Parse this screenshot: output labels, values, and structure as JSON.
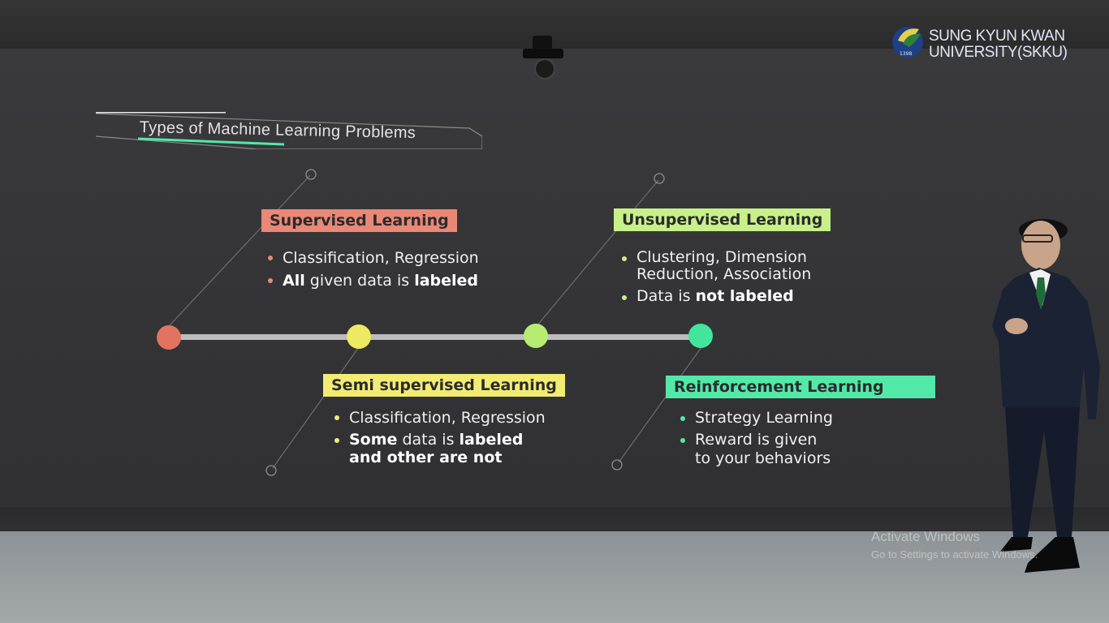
{
  "logo": {
    "line1": "SUNG KYUN KWAN",
    "line2": "UNIVERSITY(SKKU)",
    "year": "1398"
  },
  "slide": {
    "title": "Types of Machine Learning Problems",
    "categories": [
      {
        "name": "Supervised Learning",
        "color": "#e98876",
        "bullets": [
          {
            "parts": [
              "Classification, Regression"
            ]
          },
          {
            "bold1": "All",
            "text1": " given data is ",
            "bold2": "labeled"
          }
        ]
      },
      {
        "name": "Semi supervised Learning",
        "color": "#f2ec73",
        "bullets": [
          {
            "parts": [
              "Classification, Regression"
            ]
          },
          {
            "bold1": "Some",
            "text1": " data is ",
            "bold2": "labeled",
            "line2": "and other are not"
          }
        ]
      },
      {
        "name": "Unsupervised Learning",
        "color": "#c8f08a",
        "bullets": [
          {
            "line1": "Clustering, Dimension",
            "line2": "Reduction, Association"
          },
          {
            "text1": "Data is ",
            "bold2": "not labeled"
          }
        ]
      },
      {
        "name": "Reinforcement Learning",
        "color": "#52e9a8",
        "bullets": [
          {
            "parts": [
              "Strategy Learning"
            ]
          },
          {
            "line1": "Reward is given",
            "line2": "to your behaviors"
          }
        ]
      }
    ]
  },
  "watermark": {
    "title": "Activate Windows",
    "subtitle": "Go to Settings to activate Windows."
  }
}
